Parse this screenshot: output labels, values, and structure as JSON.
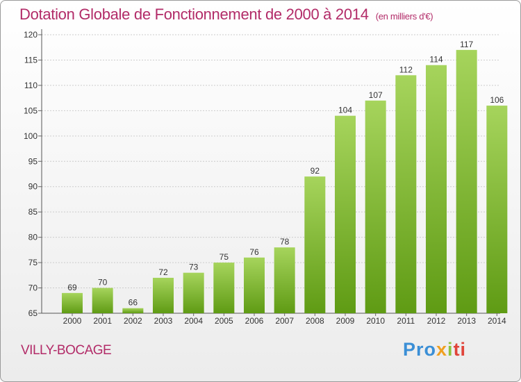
{
  "title": "Dotation Globale de Fonctionnement de 2000 à 2014",
  "subtitle": "(en milliers d'€)",
  "commune": "VILLY-BOCAGE",
  "logo": {
    "parts": [
      "Pro",
      "x",
      "i",
      "ti"
    ],
    "colors": [
      "#3b8fd6",
      "#f0a020",
      "#8cc43c",
      "#e0443a"
    ]
  },
  "colors": {
    "bar_light": "#a6d45c",
    "bar_dark": "#5f9b14",
    "title": "#b22b68",
    "grid": "#cccccc"
  },
  "chart_data": {
    "type": "bar",
    "title": "Dotation Globale de Fonctionnement de 2000 à 2014",
    "subtitle": "(en milliers d'€)",
    "categories": [
      "2000",
      "2001",
      "2002",
      "2003",
      "2004",
      "2005",
      "2006",
      "2007",
      "2008",
      "2009",
      "2010",
      "2011",
      "2012",
      "2013",
      "2014"
    ],
    "values": [
      69,
      70,
      66,
      72,
      73,
      75,
      76,
      78,
      92,
      104,
      107,
      112,
      114,
      117,
      106
    ],
    "ylim": [
      65,
      120
    ],
    "yticks": [
      65,
      70,
      75,
      80,
      85,
      90,
      95,
      100,
      105,
      110,
      115,
      120
    ],
    "grid": true,
    "legend": "none"
  }
}
